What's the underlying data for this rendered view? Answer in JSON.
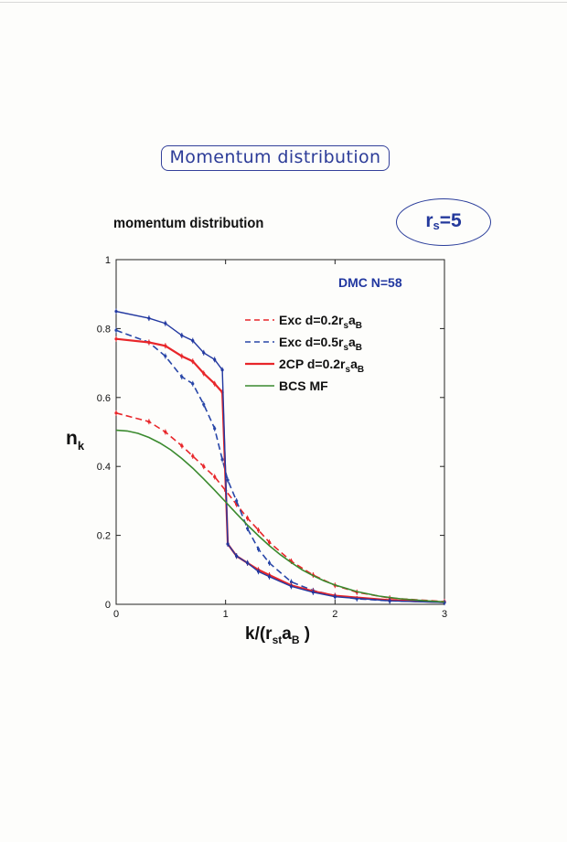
{
  "header": {
    "title": "Momentum distribution"
  },
  "badge": {
    "main": "r",
    "sub": "s",
    "rest": "=5"
  },
  "plot": {
    "title": "momentum distribution",
    "ylabel_main": "n",
    "ylabel_sub": "k",
    "xlabel_parts": [
      "k/(r",
      "st",
      "a",
      "B",
      " )"
    ],
    "annotation": "DMC N=58"
  },
  "chart_data": {
    "type": "line",
    "title": "momentum distribution",
    "xlabel": "k/(r_st a_B )",
    "ylabel": "n_k",
    "xlim": [
      0,
      3
    ],
    "ylim": [
      0,
      1
    ],
    "xticks": [
      0,
      1,
      2,
      3
    ],
    "yticks": [
      0,
      0.2,
      0.4,
      0.6,
      0.8,
      1
    ],
    "grid": false,
    "legend_position": "top-right",
    "annotation": "DMC N=58",
    "series": [
      {
        "name": "Exc d=0.2r_s a_B",
        "legend_parts": [
          "Exc d=0.2r",
          "s",
          "a",
          "B"
        ],
        "color": "#e8262a",
        "dash": "dashed",
        "width": 1.6,
        "x": [
          0,
          0.3,
          0.45,
          0.6,
          0.7,
          0.8,
          0.9,
          1.0,
          1.1,
          1.2,
          1.3,
          1.4,
          1.6,
          1.8,
          2.0,
          2.2,
          2.5,
          3.0
        ],
        "y": [
          0.555,
          0.53,
          0.5,
          0.46,
          0.43,
          0.4,
          0.37,
          0.33,
          0.29,
          0.25,
          0.215,
          0.18,
          0.125,
          0.085,
          0.055,
          0.035,
          0.018,
          0.008
        ]
      },
      {
        "name": "Exc d=0.5r_s a_B",
        "legend_parts": [
          "Exc d=0.5r",
          "s",
          "a",
          "B"
        ],
        "color": "#2846a8",
        "dash": "dashed",
        "width": 1.6,
        "x": [
          0,
          0.3,
          0.45,
          0.6,
          0.7,
          0.8,
          0.9,
          0.97,
          1.02,
          1.1,
          1.2,
          1.3,
          1.4,
          1.6,
          1.8,
          2.0,
          2.2,
          2.5,
          3.0
        ],
        "y": [
          0.795,
          0.76,
          0.72,
          0.66,
          0.64,
          0.58,
          0.51,
          0.42,
          0.36,
          0.3,
          0.22,
          0.16,
          0.12,
          0.065,
          0.04,
          0.025,
          0.016,
          0.01,
          0.006
        ]
      },
      {
        "name": "2CP d=0.2r_s a_B",
        "legend_parts": [
          "2CP d=0.2r",
          "s",
          "a",
          "B"
        ],
        "color": "#e8262a",
        "dash": "solid",
        "width": 2.2,
        "x": [
          0,
          0.3,
          0.45,
          0.6,
          0.7,
          0.8,
          0.9,
          0.97,
          1.02,
          1.1,
          1.2,
          1.3,
          1.4,
          1.6,
          1.8,
          2.0,
          2.5,
          3.0
        ],
        "y": [
          0.77,
          0.76,
          0.75,
          0.72,
          0.705,
          0.67,
          0.64,
          0.615,
          0.175,
          0.14,
          0.12,
          0.1,
          0.085,
          0.055,
          0.038,
          0.025,
          0.012,
          0.006
        ]
      },
      {
        "name": "DMC N=58",
        "legend_parts": null,
        "color": "#2238a0",
        "dash": "solid",
        "width": 1.4,
        "x": [
          0,
          0.3,
          0.45,
          0.6,
          0.7,
          0.8,
          0.9,
          0.97,
          1.02,
          1.1,
          1.2,
          1.3,
          1.4,
          1.6,
          1.8,
          2.0,
          2.5,
          3.0
        ],
        "y": [
          0.85,
          0.83,
          0.815,
          0.78,
          0.765,
          0.73,
          0.71,
          0.68,
          0.175,
          0.14,
          0.12,
          0.095,
          0.08,
          0.052,
          0.035,
          0.022,
          0.01,
          0.005
        ]
      },
      {
        "name": "BCS MF",
        "legend_parts": [
          "BCS MF"
        ],
        "color": "#3a8a2e",
        "dash": "solid",
        "width": 1.6,
        "x": [
          0,
          0.1,
          0.2,
          0.3,
          0.4,
          0.5,
          0.6,
          0.7,
          0.8,
          0.9,
          1.0,
          1.1,
          1.2,
          1.3,
          1.4,
          1.5,
          1.6,
          1.7,
          1.8,
          1.9,
          2.0,
          2.2,
          2.4,
          2.6,
          2.8,
          3.0
        ],
        "y": [
          0.505,
          0.503,
          0.496,
          0.484,
          0.468,
          0.448,
          0.423,
          0.395,
          0.364,
          0.331,
          0.297,
          0.263,
          0.23,
          0.199,
          0.17,
          0.144,
          0.121,
          0.1,
          0.083,
          0.068,
          0.056,
          0.037,
          0.024,
          0.016,
          0.011,
          0.007
        ]
      }
    ]
  }
}
